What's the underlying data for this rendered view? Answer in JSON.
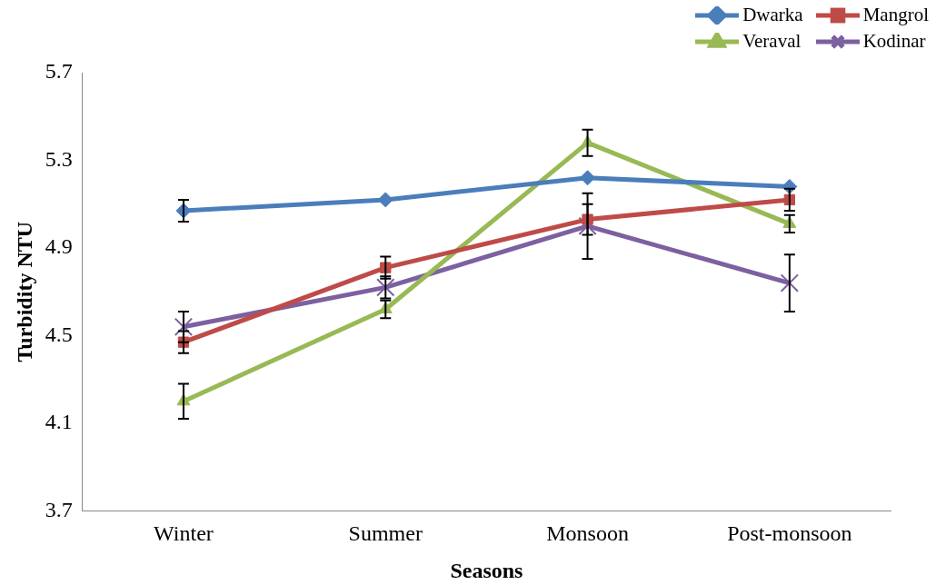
{
  "chart_data": {
    "type": "line",
    "xlabel": "Seasons",
    "ylabel": "Turbidity NTU",
    "categories": [
      "Winter",
      "Summer",
      "Monsoon",
      "Post-monsoon"
    ],
    "series": [
      {
        "name": "Dwarka",
        "color": "#4a7ebb",
        "marker": "diamond",
        "values": [
          5.07,
          5.12,
          5.22,
          5.18
        ],
        "errors": [
          0.05,
          null,
          null,
          null
        ]
      },
      {
        "name": "Mangrol",
        "color": "#be4b48",
        "marker": "square",
        "values": [
          4.47,
          4.81,
          5.03,
          5.12
        ],
        "errors": [
          0.05,
          0.05,
          0.07,
          0.05
        ]
      },
      {
        "name": "Veraval",
        "color": "#98b954",
        "marker": "triangle",
        "values": [
          4.2,
          4.62,
          5.38,
          5.01
        ],
        "errors": [
          0.08,
          0.04,
          0.06,
          0.04
        ]
      },
      {
        "name": "Kodinar",
        "color": "#7d60a0",
        "marker": "cross",
        "values": [
          4.54,
          4.72,
          5.0,
          4.74
        ],
        "errors": [
          0.07,
          0.05,
          0.15,
          0.13
        ]
      }
    ],
    "ylim": [
      3.7,
      5.7
    ],
    "yticks": [
      3.7,
      4.1,
      4.5,
      4.9,
      5.3,
      5.7
    ],
    "grid": false,
    "legend": "top right"
  }
}
